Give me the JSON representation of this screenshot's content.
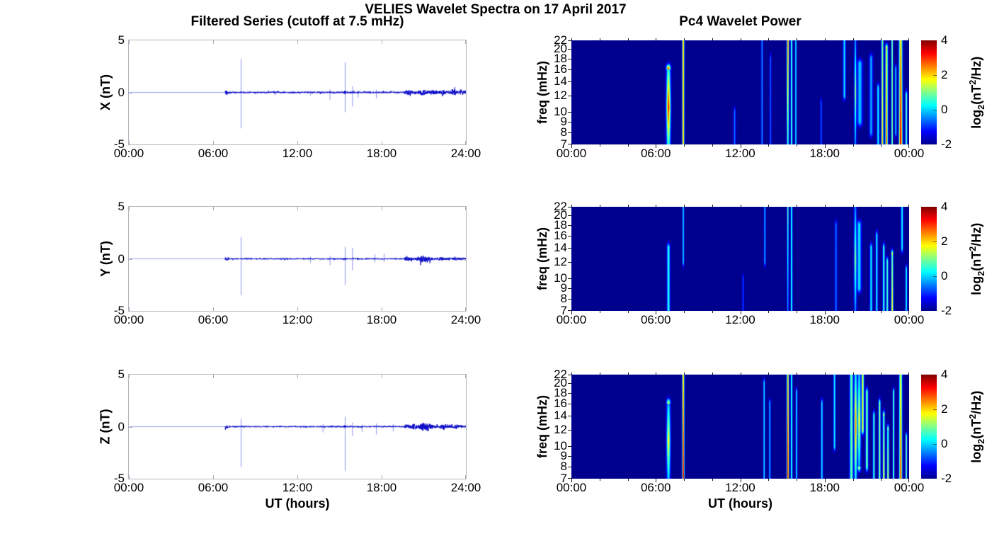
{
  "figure": {
    "title": "VELIES Wavelet Spectra on 17 April 2017"
  },
  "columns": {
    "left": {
      "title": "Filtered Series (cutoff at 7.5 mHz)",
      "xlabel": "UT (hours)",
      "x_tick_labels": [
        "00:00",
        "06:00",
        "12:00",
        "18:00",
        "24:00"
      ],
      "y_tick_labels": [
        "5",
        "0",
        "-5"
      ],
      "panel_ylabels": [
        "X (nT)",
        "Y (nT)",
        "Z (nT)"
      ]
    },
    "right": {
      "title": "Pc4 Wavelet Power",
      "xlabel": "UT (hours)",
      "x_tick_labels": [
        "00:00",
        "06:00",
        "12:00",
        "18:00",
        "00:00"
      ],
      "ylabel": "freq (mHz)",
      "y_tick_values": [
        22,
        20,
        18,
        16,
        14,
        12,
        10,
        9,
        8,
        7
      ],
      "colorbar": {
        "tick_labels": [
          "4",
          "2",
          "0",
          "-2"
        ],
        "tick_values": [
          4,
          2,
          0,
          -2
        ],
        "label": {
          "prefix": "log",
          "sub": "2",
          "mid": "(nT",
          "sup": "2",
          "suffix": "/Hz)"
        },
        "colormap": "jet",
        "gradient_stops": [
          [
            "0%",
            "#00008c"
          ],
          [
            "12.5%",
            "#0000ff"
          ],
          [
            "37.5%",
            "#00ffff"
          ],
          [
            "50%",
            "#80ff8c"
          ],
          [
            "62.5%",
            "#ffff00"
          ],
          [
            "87.5%",
            "#ff0000"
          ],
          [
            "100%",
            "#800000"
          ]
        ]
      }
    }
  },
  "chart_data": [
    {
      "panel": "X",
      "type": "line",
      "ylabel": "X (nT)",
      "xlabel": "UT (hours)",
      "xlim_hours": [
        0,
        24
      ],
      "ylim_nT": [
        -5,
        5
      ],
      "x_tick_labels": [
        "00:00",
        "06:00",
        "12:00",
        "18:00",
        "24:00"
      ],
      "y_tick_labels": [
        "5",
        "0",
        "-5"
      ],
      "quiet_value": 0,
      "data_start_hour": 6.86,
      "noise_base_nT": 0.07,
      "noise_late_nT": 0.15,
      "late_start_hour": 19.6,
      "noise_bursts_t_w_amp": [
        [
          6.96,
          0.08,
          0.18
        ],
        [
          15.38,
          0.06,
          0.1
        ],
        [
          19.9,
          0.12,
          0.1
        ],
        [
          20.9,
          0.18,
          0.14
        ],
        [
          21.6,
          0.1,
          0.08
        ],
        [
          22.4,
          0.1,
          0.08
        ],
        [
          23.2,
          0.12,
          0.16
        ],
        [
          23.7,
          0.08,
          0.1
        ]
      ],
      "spikes_t_up_down": [
        [
          7.97,
          3.2,
          -3.45
        ],
        [
          15.38,
          2.9,
          -1.9
        ],
        [
          15.9,
          0.6,
          -1.35
        ],
        [
          14.3,
          0.3,
          -0.7
        ],
        [
          16.3,
          0.2,
          -0.5
        ],
        [
          17.6,
          0.25,
          -0.55
        ],
        [
          10.4,
          0.15,
          -0.3
        ],
        [
          12.9,
          0.15,
          -0.3
        ]
      ],
      "color": "#0a0ac8",
      "quiet_color": "#9aa3ea",
      "spike_color": "#8a93ea",
      "seed": 42
    },
    {
      "panel": "X",
      "type": "heatmap",
      "ylabel": "freq (mHz)",
      "xlabel": "UT (hours)",
      "xlim_hours": [
        0,
        24
      ],
      "freq_range_mHz": [
        7,
        22
      ],
      "freq_scale": "log",
      "y_tick_values": [
        22,
        20,
        18,
        16,
        14,
        12,
        10,
        9,
        8,
        7
      ],
      "clim_log2_power": [
        -2,
        4
      ],
      "background_value": -2,
      "colormap": "jet",
      "events_t_w_f1_f2_peak_grad": [
        [
          6.9,
          0.1,
          7,
          16,
          3.2,
          "mid"
        ],
        [
          7.95,
          0.05,
          7,
          22,
          2.4,
          "none"
        ],
        [
          11.6,
          0.05,
          7,
          10,
          -0.5,
          "none"
        ],
        [
          13.55,
          0.04,
          7,
          22,
          -0.2,
          "none"
        ],
        [
          14.15,
          0.04,
          7,
          18,
          -0.6,
          "none"
        ],
        [
          15.38,
          0.05,
          7,
          22,
          2.9,
          "top"
        ],
        [
          15.65,
          0.04,
          7,
          22,
          1.0,
          "none"
        ],
        [
          15.95,
          0.04,
          7,
          22,
          0.3,
          "none"
        ],
        [
          17.75,
          0.04,
          7,
          11,
          -0.6,
          "none"
        ],
        [
          19.4,
          0.06,
          12,
          22,
          0.2,
          "none"
        ],
        [
          20.18,
          0.05,
          7,
          22,
          1.4,
          "mid"
        ],
        [
          20.5,
          0.12,
          9,
          17,
          0.0,
          "none"
        ],
        [
          21.3,
          0.08,
          8,
          18,
          -0.2,
          "none"
        ],
        [
          21.8,
          0.06,
          7,
          13,
          0.3,
          "none"
        ],
        [
          22.1,
          0.05,
          7,
          22,
          2.2,
          "bottom"
        ],
        [
          22.4,
          0.06,
          7,
          20,
          2.9,
          "bottom"
        ],
        [
          22.8,
          0.04,
          7,
          22,
          1.3,
          "none"
        ],
        [
          23.05,
          0.04,
          8,
          16,
          0.2,
          "none"
        ],
        [
          23.4,
          0.08,
          7,
          22,
          3.6,
          "bottom"
        ],
        [
          23.8,
          0.05,
          7,
          12,
          1.0,
          "none"
        ]
      ],
      "seed": 3
    },
    {
      "panel": "Y",
      "type": "line",
      "ylabel": "Y (nT)",
      "xlabel": "UT (hours)",
      "xlim_hours": [
        0,
        24
      ],
      "ylim_nT": [
        -5,
        5
      ],
      "x_tick_labels": [
        "00:00",
        "06:00",
        "12:00",
        "18:00",
        "24:00"
      ],
      "y_tick_labels": [
        "5",
        "0",
        "-5"
      ],
      "quiet_value": 0,
      "data_start_hour": 6.86,
      "noise_base_nT": 0.06,
      "noise_late_nT": 0.12,
      "late_start_hour": 19.6,
      "noise_bursts_t_w_amp": [
        [
          6.96,
          0.08,
          0.14
        ],
        [
          15.38,
          0.05,
          0.08
        ],
        [
          19.8,
          0.1,
          0.08
        ],
        [
          20.9,
          0.2,
          0.2
        ],
        [
          21.4,
          0.1,
          0.1
        ],
        [
          22.2,
          0.1,
          0.07
        ],
        [
          23.4,
          0.06,
          0.09
        ]
      ],
      "spikes_t_up_down": [
        [
          7.97,
          2.1,
          -3.5
        ],
        [
          15.38,
          1.15,
          -2.5
        ],
        [
          15.9,
          1.05,
          -1.1
        ],
        [
          14.3,
          0.3,
          -0.6
        ],
        [
          17.5,
          0.45,
          -0.35
        ],
        [
          18.15,
          0.5,
          -0.3
        ],
        [
          12.9,
          0.2,
          -0.4
        ]
      ],
      "color": "#0a0ac8",
      "quiet_color": "#9aa3ea",
      "spike_color": "#8a93ea",
      "seed": 7
    },
    {
      "panel": "Y",
      "type": "heatmap",
      "ylabel": "freq (mHz)",
      "xlabel": "UT (hours)",
      "xlim_hours": [
        0,
        24
      ],
      "freq_range_mHz": [
        7,
        22
      ],
      "freq_scale": "log",
      "y_tick_values": [
        22,
        20,
        18,
        16,
        14,
        12,
        10,
        9,
        8,
        7
      ],
      "clim_log2_power": [
        -2,
        4
      ],
      "background_value": -2,
      "colormap": "jet",
      "events_t_w_f1_f2_peak_grad": [
        [
          6.9,
          0.07,
          7,
          14,
          0.6,
          "none"
        ],
        [
          7.95,
          0.04,
          12,
          22,
          0.2,
          "none"
        ],
        [
          12.2,
          0.04,
          7,
          10,
          -0.8,
          "none"
        ],
        [
          13.75,
          0.04,
          12,
          22,
          0.0,
          "none"
        ],
        [
          15.38,
          0.04,
          7,
          22,
          1.0,
          "top"
        ],
        [
          15.65,
          0.04,
          7,
          22,
          0.7,
          "none"
        ],
        [
          18.8,
          0.05,
          7,
          18,
          -0.4,
          "none"
        ],
        [
          20.18,
          0.06,
          7,
          22,
          1.2,
          "mid"
        ],
        [
          20.45,
          0.1,
          9,
          18,
          0.2,
          "none"
        ],
        [
          21.3,
          0.06,
          7,
          14,
          0.3,
          "none"
        ],
        [
          21.7,
          0.05,
          7,
          16,
          0.4,
          "none"
        ],
        [
          22.2,
          0.05,
          7,
          14,
          0.8,
          "none"
        ],
        [
          22.45,
          0.05,
          7,
          12,
          0.9,
          "none"
        ],
        [
          22.8,
          0.05,
          7,
          13,
          2.0,
          "bottom"
        ],
        [
          23.5,
          0.05,
          14,
          22,
          0.5,
          "none"
        ],
        [
          23.8,
          0.04,
          7,
          11,
          0.6,
          "none"
        ]
      ],
      "seed": 4
    },
    {
      "panel": "Z",
      "type": "line",
      "ylabel": "Z (nT)",
      "xlabel": "UT (hours)",
      "xlim_hours": [
        0,
        24
      ],
      "ylim_nT": [
        -5,
        5
      ],
      "x_tick_labels": [
        "00:00",
        "06:00",
        "12:00",
        "18:00",
        "24:00"
      ],
      "y_tick_labels": [
        "5",
        "0",
        "-5"
      ],
      "quiet_value": 0,
      "data_start_hour": 6.86,
      "noise_base_nT": 0.06,
      "noise_late_nT": 0.13,
      "late_start_hour": 19.6,
      "noise_bursts_t_w_amp": [
        [
          6.96,
          0.08,
          0.15
        ],
        [
          15.38,
          0.05,
          0.09
        ],
        [
          19.8,
          0.1,
          0.1
        ],
        [
          20.3,
          0.15,
          0.15
        ],
        [
          21.0,
          0.2,
          0.26
        ],
        [
          21.5,
          0.1,
          0.1
        ],
        [
          22.3,
          0.12,
          0.1
        ],
        [
          23.3,
          0.1,
          0.13
        ]
      ],
      "spikes_t_up_down": [
        [
          7.97,
          0.75,
          -3.9
        ],
        [
          15.38,
          0.95,
          -4.25
        ],
        [
          15.9,
          0.4,
          -0.9
        ],
        [
          13.8,
          0.25,
          -0.55
        ],
        [
          16.6,
          0.2,
          -0.5
        ],
        [
          17.6,
          0.3,
          -0.75
        ],
        [
          18.8,
          0.25,
          -0.45
        ]
      ],
      "color": "#0a0ac8",
      "quiet_color": "#9aa3ea",
      "spike_color": "#8a93ea",
      "seed": 13
    },
    {
      "panel": "Z",
      "type": "heatmap",
      "ylabel": "freq (mHz)",
      "xlabel": "UT (hours)",
      "xlim_hours": [
        0,
        24
      ],
      "freq_range_mHz": [
        7,
        22
      ],
      "freq_scale": "log",
      "y_tick_values": [
        22,
        20,
        18,
        16,
        14,
        12,
        10,
        9,
        8,
        7
      ],
      "clim_log2_power": [
        -2,
        4
      ],
      "background_value": -2,
      "colormap": "jet",
      "events_t_w_f1_f2_peak_grad": [
        [
          6.9,
          0.09,
          7,
          16,
          1.9,
          "mid"
        ],
        [
          7.95,
          0.05,
          7,
          22,
          3.7,
          "bottom"
        ],
        [
          13.7,
          0.04,
          7,
          20,
          0.3,
          "none"
        ],
        [
          14.1,
          0.04,
          7,
          16,
          0.0,
          "none"
        ],
        [
          15.38,
          0.05,
          7,
          22,
          3.8,
          "bottom"
        ],
        [
          15.65,
          0.04,
          7,
          22,
          0.8,
          "none"
        ],
        [
          16.0,
          0.04,
          7,
          18,
          0.3,
          "none"
        ],
        [
          17.8,
          0.05,
          7,
          16,
          0.2,
          "none"
        ],
        [
          18.7,
          0.05,
          10,
          22,
          0.4,
          "none"
        ],
        [
          19.9,
          0.08,
          7,
          22,
          1.0,
          "none"
        ],
        [
          20.2,
          0.07,
          7,
          22,
          2.6,
          "mid"
        ],
        [
          20.45,
          0.08,
          8,
          22,
          1.8,
          "mid"
        ],
        [
          20.7,
          0.06,
          12,
          22,
          1.9,
          "none"
        ],
        [
          21.0,
          0.06,
          8,
          18,
          1.2,
          "none"
        ],
        [
          21.5,
          0.05,
          7,
          14,
          0.8,
          "none"
        ],
        [
          21.9,
          0.05,
          7,
          16,
          1.3,
          "none"
        ],
        [
          22.2,
          0.05,
          7,
          14,
          1.9,
          "bottom"
        ],
        [
          22.5,
          0.05,
          7,
          12,
          1.6,
          "bottom"
        ],
        [
          22.9,
          0.04,
          7,
          18,
          1.2,
          "none"
        ],
        [
          23.4,
          0.07,
          7,
          22,
          3.0,
          "bottom"
        ],
        [
          23.8,
          0.04,
          7,
          11,
          1.3,
          "none"
        ]
      ],
      "seed": 5
    }
  ]
}
